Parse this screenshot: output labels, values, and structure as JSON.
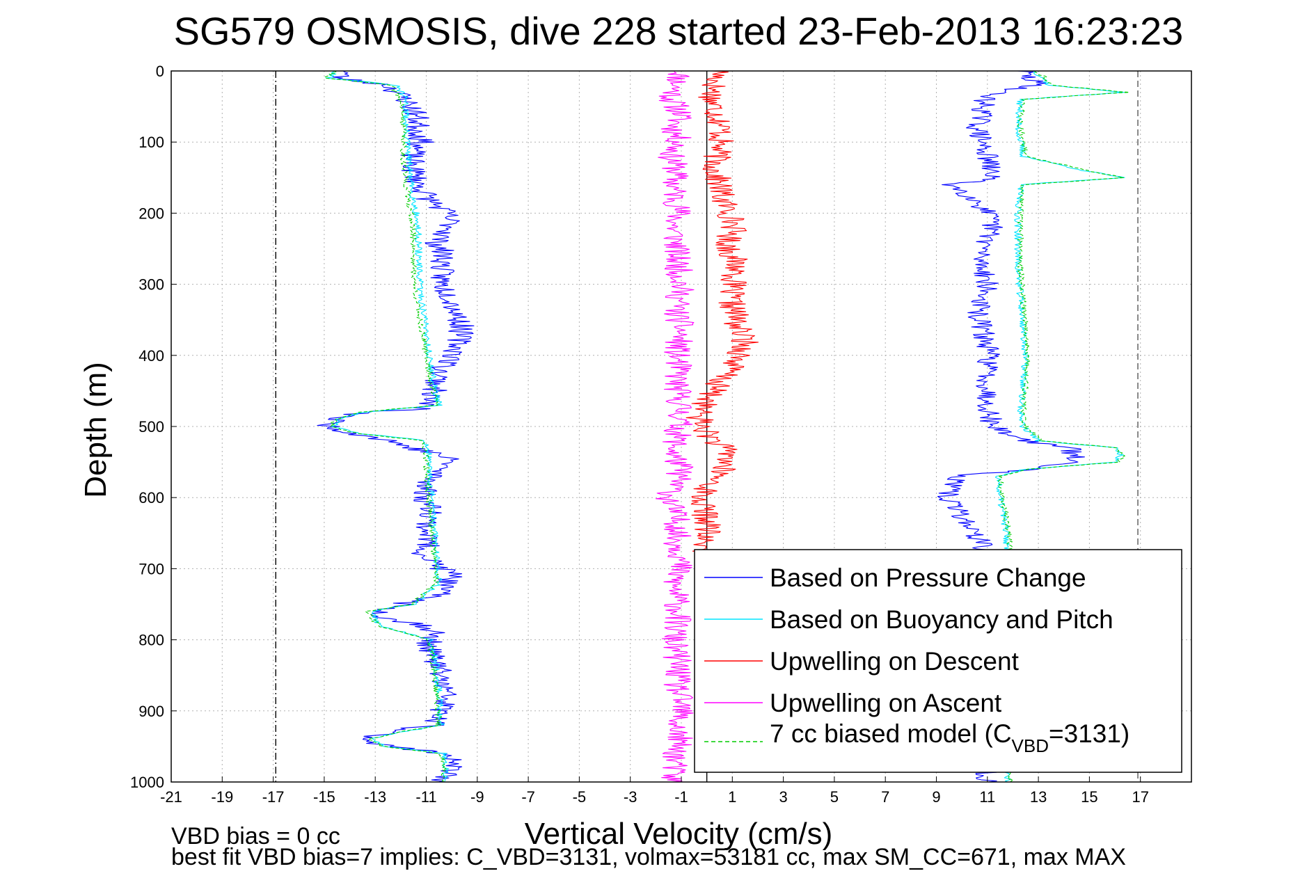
{
  "chart_data": {
    "type": "line",
    "title": "SG579 OSMOSIS, dive 228 started 23-Feb-2013 16:23:23",
    "xlabel": "Vertical Velocity (cm/s)",
    "ylabel": "Depth (m)",
    "xlim": [
      -21,
      19
    ],
    "ylim": [
      0,
      1000
    ],
    "y_reversed": true,
    "grid": true,
    "xticks": [
      -21,
      -19,
      -17,
      -15,
      -13,
      -11,
      -9,
      -7,
      -5,
      -3,
      -1,
      1,
      3,
      5,
      7,
      9,
      11,
      13,
      15,
      17
    ],
    "yticks": [
      0,
      100,
      200,
      300,
      400,
      500,
      600,
      700,
      800,
      900,
      1000
    ],
    "reference_lines": [
      {
        "x": -16.9,
        "style": "dash-dot",
        "color": "#000000"
      },
      {
        "x": 0,
        "style": "solid",
        "color": "#000000"
      },
      {
        "x": 16.9,
        "style": "dashed",
        "color": "#555555"
      }
    ],
    "legend_position": "lower-right",
    "legend": [
      {
        "label": "Based on Pressure Change",
        "color": "#0000ff",
        "style": "solid"
      },
      {
        "label": "Based on Buoyancy and Pitch",
        "color": "#00e5ff",
        "style": "solid"
      },
      {
        "label": "Upwelling on Descent",
        "color": "#ff0000",
        "style": "solid"
      },
      {
        "label": "Upwelling on Ascent",
        "color": "#ff00ff",
        "style": "solid"
      },
      {
        "label_main": "7 cc biased model (C",
        "label_sub": "VBD",
        "label_tail": "=3131)",
        "color": "#00cc00",
        "style": "dashed"
      }
    ],
    "series": [
      {
        "key": "pressure",
        "color": "#0000ff",
        "descent": {
          "depth": [
            0,
            10,
            20,
            40,
            60,
            80,
            100,
            120,
            140,
            160,
            180,
            200,
            220,
            240,
            260,
            280,
            300,
            320,
            340,
            360,
            380,
            400,
            420,
            440,
            460,
            475,
            480,
            490,
            500,
            510,
            520,
            530,
            540,
            550,
            560,
            580,
            600,
            620,
            640,
            660,
            680,
            700,
            710,
            720,
            740,
            750,
            760,
            770,
            780,
            790,
            800,
            820,
            840,
            860,
            880,
            900,
            920,
            930,
            940,
            950,
            960,
            970,
            980,
            990,
            1000
          ],
          "values": [
            -14,
            -14.5,
            -12.5,
            -11.8,
            -11.4,
            -11.3,
            -11.2,
            -11.6,
            -11.5,
            -11.3,
            -10.9,
            -10.2,
            -10.0,
            -10.6,
            -10.3,
            -10.4,
            -10.4,
            -10.0,
            -9.8,
            -9.6,
            -9.7,
            -9.9,
            -10.4,
            -10.6,
            -10.8,
            -11.2,
            -13.5,
            -14.6,
            -14.8,
            -13.8,
            -12.4,
            -11.6,
            -10.4,
            -10.0,
            -10.5,
            -10.9,
            -11.1,
            -10.7,
            -11.0,
            -10.9,
            -11.1,
            -10.4,
            -9.8,
            -10.3,
            -10.6,
            -12.0,
            -12.8,
            -12.6,
            -11.0,
            -10.7,
            -10.9,
            -10.8,
            -10.5,
            -10.4,
            -10.2,
            -10.4,
            -10.8,
            -12.5,
            -13.3,
            -12.5,
            -10.2,
            -9.8,
            -10.0,
            -10.3,
            -10.5
          ]
        },
        "ascent": {
          "depth": [
            0,
            10,
            20,
            30,
            40,
            60,
            80,
            100,
            120,
            140,
            150,
            160,
            180,
            200,
            220,
            240,
            260,
            280,
            300,
            320,
            340,
            360,
            380,
            400,
            420,
            440,
            460,
            480,
            500,
            520,
            530,
            540,
            550,
            560,
            570,
            580,
            600,
            620,
            640,
            660,
            680,
            1000
          ],
          "values": [
            12.4,
            12.6,
            13.0,
            11.4,
            10.9,
            10.8,
            10.6,
            10.8,
            11.0,
            11.1,
            11.3,
            9.6,
            10.5,
            11.0,
            11.2,
            11.0,
            10.7,
            10.9,
            11.0,
            10.8,
            10.6,
            10.8,
            10.9,
            11.1,
            11.0,
            11.0,
            11.0,
            11.1,
            11.2,
            12.5,
            14.2,
            14.4,
            14.3,
            13.0,
            9.8,
            9.6,
            9.4,
            9.9,
            10.3,
            10.7,
            11.0,
            11.0
          ]
        }
      },
      {
        "key": "buoyancy",
        "color": "#00e5ff",
        "descent": {
          "depth": [
            0,
            10,
            20,
            40,
            80,
            120,
            160,
            200,
            240,
            280,
            320,
            360,
            400,
            440,
            470,
            480,
            490,
            500,
            510,
            520,
            540,
            560,
            600,
            640,
            680,
            720,
            750,
            760,
            780,
            800,
            840,
            880,
            920,
            930,
            940,
            950,
            960,
            980,
            1000
          ],
          "values": [
            -14.5,
            -14.8,
            -12.2,
            -11.8,
            -11.8,
            -11.7,
            -11.6,
            -11.4,
            -11.3,
            -11.3,
            -11.2,
            -11.0,
            -10.9,
            -10.7,
            -10.5,
            -13.5,
            -14.5,
            -14.6,
            -13.6,
            -11.0,
            -10.9,
            -10.9,
            -10.8,
            -10.7,
            -10.6,
            -10.5,
            -11.5,
            -13.2,
            -12.8,
            -10.8,
            -10.6,
            -10.5,
            -10.4,
            -12.0,
            -13.2,
            -12.6,
            -10.3,
            -10.2,
            -10.3
          ]
        },
        "ascent": {
          "depth": [
            0,
            10,
            20,
            30,
            40,
            80,
            120,
            140,
            150,
            160,
            200,
            240,
            280,
            320,
            360,
            400,
            440,
            480,
            500,
            520,
            530,
            540,
            550,
            560,
            570,
            600,
            640,
            680,
            1000
          ],
          "values": [
            12.8,
            13.2,
            13.4,
            16.4,
            12.3,
            12.2,
            12.4,
            14.8,
            16.3,
            12.3,
            12.2,
            12.2,
            12.2,
            12.3,
            12.4,
            12.5,
            12.4,
            12.3,
            12.4,
            13.0,
            16.0,
            16.2,
            16.0,
            12.5,
            11.4,
            11.5,
            11.7,
            11.8,
            11.8
          ]
        }
      },
      {
        "key": "descent_upwelling",
        "color": "#ff0000",
        "depth": [
          0,
          20,
          40,
          60,
          80,
          100,
          120,
          140,
          160,
          180,
          200,
          220,
          240,
          260,
          280,
          300,
          320,
          340,
          360,
          380,
          400,
          420,
          440,
          460,
          480,
          500,
          520,
          540,
          560,
          580,
          600,
          620,
          640,
          660,
          680
        ],
        "values": [
          0.5,
          0.3,
          0.2,
          0.4,
          0.6,
          0.5,
          0.4,
          0.3,
          0.5,
          0.6,
          0.9,
          1.1,
          0.8,
          1.0,
          1.2,
          1.0,
          0.9,
          1.1,
          1.2,
          1.5,
          1.3,
          0.9,
          0.4,
          0.1,
          -0.3,
          -0.2,
          0.3,
          0.9,
          0.6,
          0.2,
          -0.3,
          -0.1,
          0.1,
          -0.2,
          0.0
        ]
      },
      {
        "key": "ascent_upwelling",
        "color": "#ff00ff",
        "depth": [
          0,
          20,
          40,
          60,
          80,
          100,
          120,
          140,
          160,
          180,
          200,
          220,
          240,
          260,
          280,
          300,
          320,
          340,
          360,
          380,
          400,
          420,
          440,
          460,
          480,
          500,
          520,
          540,
          560,
          580,
          600,
          620,
          640,
          660,
          680,
          700,
          720,
          740,
          760,
          780,
          800,
          820,
          840,
          860,
          880,
          900,
          920,
          940,
          960,
          980,
          1000
        ],
        "values": [
          -1.0,
          -1.2,
          -1.4,
          -1.0,
          -1.3,
          -1.1,
          -1.4,
          -1.2,
          -1.3,
          -1.2,
          -1.1,
          -1.3,
          -1.2,
          -1.2,
          -1.1,
          -1.0,
          -1.1,
          -1.2,
          -1.0,
          -1.1,
          -1.2,
          -1.1,
          -1.2,
          -1.1,
          -1.0,
          -1.1,
          -1.2,
          -1.3,
          -1.0,
          -1.2,
          -1.5,
          -1.3,
          -1.1,
          -1.2,
          -1.0,
          -1.1,
          -1.3,
          -1.2,
          -1.1,
          -1.2,
          -1.3,
          -1.2,
          -1.1,
          -1.2,
          -1.1,
          -1.0,
          -1.2,
          -1.1,
          -1.2,
          -1.3,
          -1.4
        ]
      }
    ],
    "model": {
      "color": "#00cc00",
      "descent": {
        "depth": [
          0,
          10,
          20,
          40,
          80,
          120,
          160,
          200,
          240,
          280,
          320,
          360,
          400,
          440,
          470,
          480,
          490,
          500,
          510,
          520,
          540,
          560,
          600,
          640,
          680,
          720,
          750,
          760,
          780,
          800,
          840,
          880,
          920,
          930,
          940,
          950,
          960,
          980,
          1000
        ],
        "values": [
          -14.6,
          -14.9,
          -12.4,
          -12.0,
          -11.9,
          -11.9,
          -11.8,
          -11.6,
          -11.5,
          -11.5,
          -11.4,
          -11.2,
          -11.0,
          -10.8,
          -10.6,
          -13.6,
          -14.6,
          -14.7,
          -13.7,
          -11.1,
          -11.0,
          -11.0,
          -10.9,
          -10.8,
          -10.7,
          -10.6,
          -11.6,
          -13.3,
          -12.9,
          -10.9,
          -10.7,
          -10.6,
          -10.5,
          -12.1,
          -13.3,
          -12.7,
          -10.4,
          -10.3,
          -10.4
        ]
      },
      "ascent": {
        "depth": [
          0,
          10,
          20,
          30,
          40,
          80,
          120,
          140,
          150,
          160,
          200,
          240,
          280,
          320,
          360,
          400,
          440,
          480,
          500,
          520,
          530,
          540,
          550,
          560,
          570,
          600,
          640,
          680,
          1000
        ],
        "values": [
          12.9,
          13.3,
          13.5,
          16.5,
          12.4,
          12.3,
          12.5,
          14.9,
          16.4,
          12.4,
          12.3,
          12.3,
          12.3,
          12.4,
          12.5,
          12.6,
          12.5,
          12.4,
          12.5,
          13.1,
          16.1,
          16.3,
          16.1,
          12.6,
          11.5,
          11.6,
          11.8,
          11.9,
          11.9
        ]
      }
    },
    "notes": [
      "VBD bias = 0 cc",
      "best fit VBD bias=7 implies: C_VBD=3131, volmax=53181 cc, max SM_CC=671, max MAX"
    ]
  }
}
